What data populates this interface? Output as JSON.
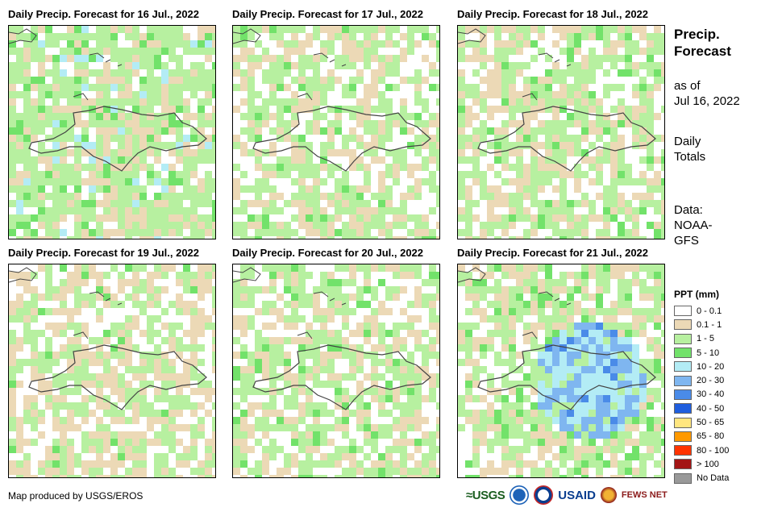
{
  "panels": [
    {
      "title": "Daily Precip. Forecast for 16 Jul., 2022",
      "seed": 1,
      "dominant": "green"
    },
    {
      "title": "Daily Precip. Forecast for 17 Jul., 2022",
      "seed": 2,
      "dominant": "mixed"
    },
    {
      "title": "Daily Precip. Forecast for 18 Jul., 2022",
      "seed": 3,
      "dominant": "mixed"
    },
    {
      "title": "Daily Precip. Forecast for 19 Jul., 2022",
      "seed": 4,
      "dominant": "tan"
    },
    {
      "title": "Daily Precip. Forecast for 20 Jul., 2022",
      "seed": 5,
      "dominant": "mixed"
    },
    {
      "title": "Daily Precip. Forecast for 21 Jul., 2022",
      "seed": 6,
      "dominant": "wet"
    }
  ],
  "side": {
    "title_line1": "Precip.",
    "title_line2": "Forecast",
    "asof_line1": "as of",
    "asof_line2": "Jul 16, 2022",
    "totals_line1": "Daily",
    "totals_line2": "Totals",
    "data_line1": "Data:",
    "data_line2": "NOAA-",
    "data_line3": "GFS"
  },
  "legend": {
    "title": "PPT (mm)",
    "items": [
      {
        "label": "0 - 0.1",
        "color": "#ffffff"
      },
      {
        "label": "0.1 - 1",
        "color": "#ecd9b6"
      },
      {
        "label": "1 - 5",
        "color": "#b7f0a0"
      },
      {
        "label": "5 - 10",
        "color": "#72e26a"
      },
      {
        "label": "10 - 20",
        "color": "#b3ecf5"
      },
      {
        "label": "20 - 30",
        "color": "#7fb6f0"
      },
      {
        "label": "30 - 40",
        "color": "#4a8be8"
      },
      {
        "label": "40 - 50",
        "color": "#1f5ede"
      },
      {
        "label": "50 - 65",
        "color": "#ffe680"
      },
      {
        "label": "65 - 80",
        "color": "#ff9900"
      },
      {
        "label": "80 - 100",
        "color": "#ff3300"
      },
      {
        "label": "> 100",
        "color": "#a31515"
      },
      {
        "label": "No Data",
        "color": "#999999"
      }
    ]
  },
  "footer": {
    "credit": "Map produced by USGS/EROS"
  },
  "logos": {
    "usgs": "≈USGS",
    "usaid": "USAID",
    "fews": "FEWS NET"
  }
}
